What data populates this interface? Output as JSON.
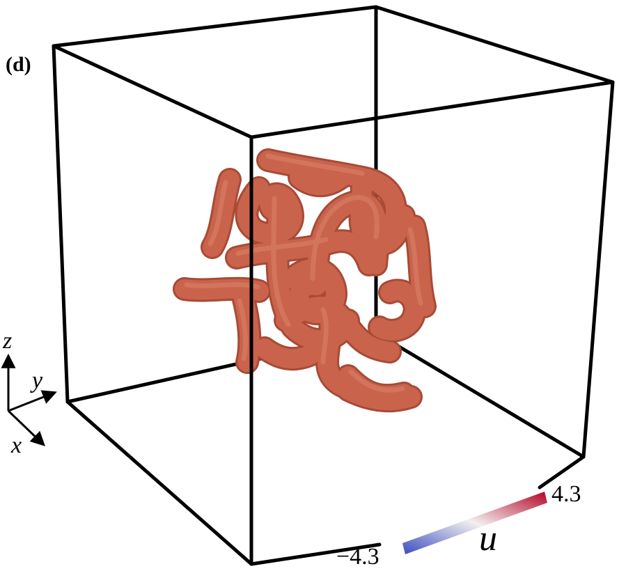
{
  "panel_label": "(d)",
  "axes_triad": {
    "z_label": "z",
    "y_label": "y",
    "x_label": "x"
  },
  "colorbar": {
    "variable": "u",
    "min_label": "−4.3",
    "max_label": "4.3",
    "min_color": "#3b4cc0",
    "mid_color": "#f2f0ef",
    "max_color": "#b40426"
  },
  "filament": {
    "color": "#c9634c",
    "highlight_color": "#e08a70",
    "shadow_color": "#a84a36"
  },
  "box": {
    "edge_color": "#000000"
  }
}
